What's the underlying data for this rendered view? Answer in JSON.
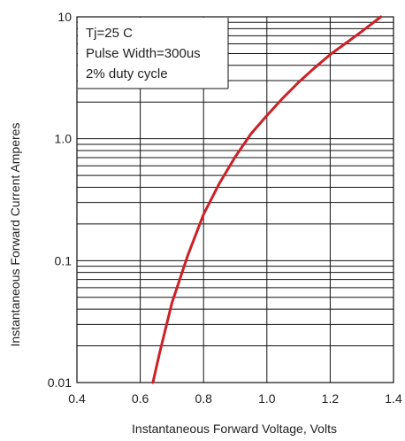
{
  "chart_data": {
    "type": "line",
    "title": "",
    "xlabel": "Instantaneous Forward Voltage, Volts",
    "ylabel": "Instantaneous Forward Current Amperes",
    "xlim": [
      0.4,
      1.4
    ],
    "ylim": [
      0.01,
      10
    ],
    "y_scale": "log",
    "grid": true,
    "x_ticks": [
      "0.4",
      "0.6",
      "0.8",
      "1.0",
      "1.2",
      "1.4"
    ],
    "y_ticks": [
      "0.01",
      "0.1",
      "1.0",
      "10"
    ],
    "annotations": [
      "Tj=25 C",
      "Pulse Width=300us",
      "2% duty cycle"
    ],
    "series": [
      {
        "color": "#cc2127",
        "x": [
          0.64,
          0.66,
          0.7,
          0.75,
          0.8,
          0.85,
          0.9,
          0.95,
          1.0,
          1.05,
          1.1,
          1.15,
          1.2,
          1.25,
          1.3,
          1.36
        ],
        "y": [
          0.01,
          0.017,
          0.045,
          0.11,
          0.24,
          0.43,
          0.71,
          1.1,
          1.55,
          2.15,
          2.9,
          3.8,
          4.9,
          6.1,
          7.6,
          10
        ]
      }
    ]
  }
}
